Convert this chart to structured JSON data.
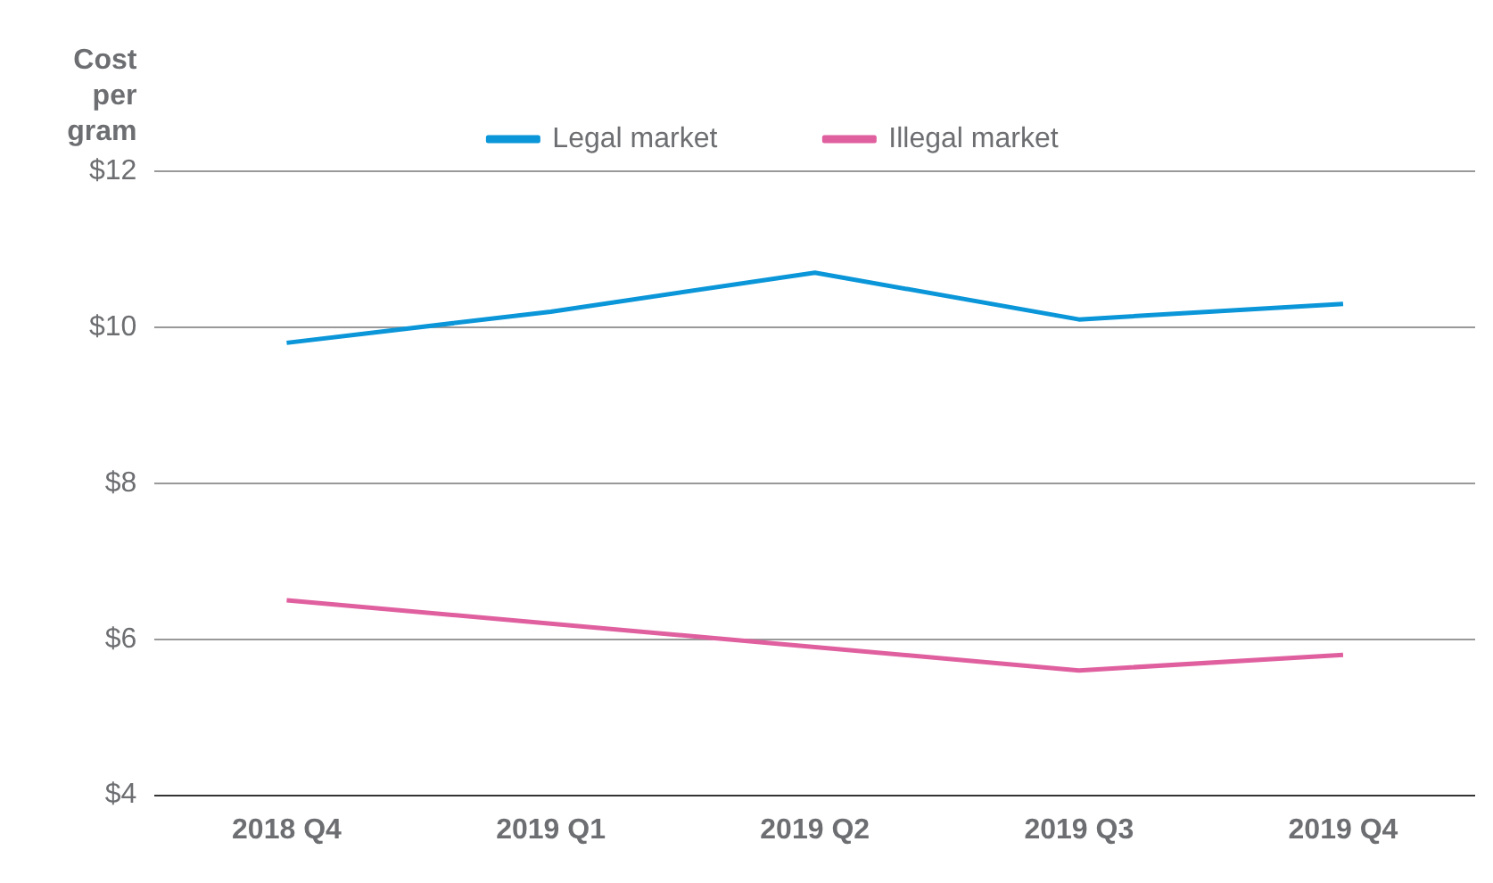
{
  "chart_data": {
    "type": "line",
    "ylabel": "Cost per gram",
    "categories": [
      "2018 Q4",
      "2019 Q1",
      "2019 Q2",
      "2019 Q3",
      "2019 Q4"
    ],
    "series": [
      {
        "name": "Legal market",
        "color": "#0a96d8",
        "values": [
          9.8,
          10.2,
          10.7,
          10.1,
          10.3
        ]
      },
      {
        "name": "Illegal market",
        "color": "#e0609f",
        "values": [
          6.5,
          6.2,
          5.9,
          5.6,
          5.8
        ]
      }
    ],
    "ylim": [
      4,
      12
    ],
    "yticks": [
      {
        "value": 4,
        "label": "$4"
      },
      {
        "value": 6,
        "label": "$6"
      },
      {
        "value": 8,
        "label": "$8"
      },
      {
        "value": 10,
        "label": "$10"
      },
      {
        "value": 12,
        "label": "$12"
      }
    ],
    "grid": "y",
    "legend": "top",
    "marker": "none",
    "line_style": "solid"
  }
}
